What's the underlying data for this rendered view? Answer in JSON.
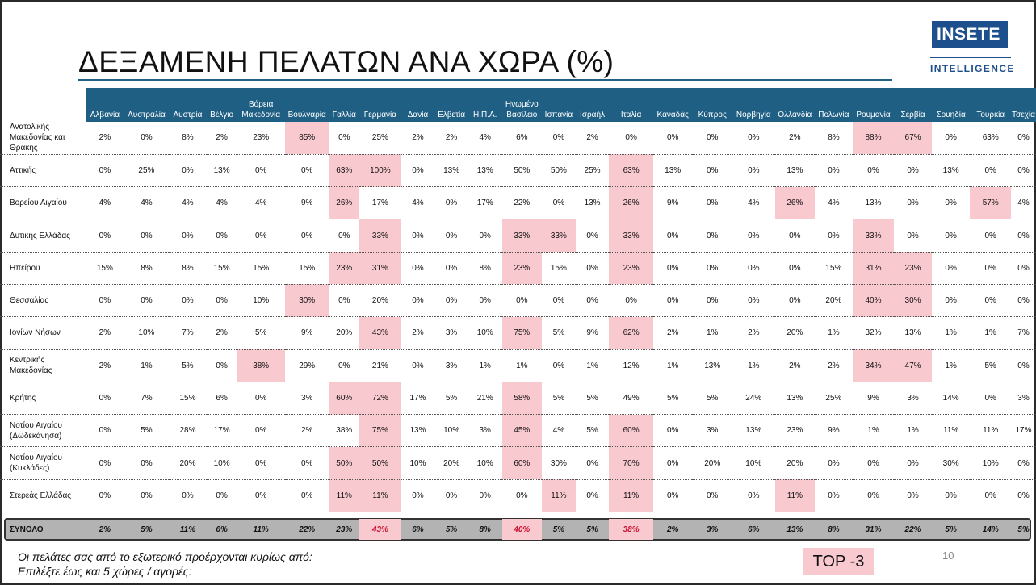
{
  "title": "ΔΕΞΑΜΕΝΗ ΠΕΛΑΤΩΝ ΑΝΑ ΧΩΡΑ (%)",
  "logo": {
    "brand_a": "IN",
    "brand_b": "SETE",
    "subtitle": "INTELLIGENCE"
  },
  "columns": [
    "Αλβανία",
    "Αυστραλία",
    "Αυστρία",
    "Βέλγιο",
    "Βόρεια Μακεδονία",
    "Βουλγαρία",
    "Γαλλία",
    "Γερμανία",
    "Δανία",
    "Ελβετία",
    "Η.Π.Α.",
    "Ηνωμένο Βασίλειο",
    "Ισπανία",
    "Ισραήλ",
    "Ιταλία",
    "Καναδάς",
    "Κύπρος",
    "Νορβηγία",
    "Ολλανδία",
    "Πολωνία",
    "Ρουμανία",
    "Σερβία",
    "Σουηδία",
    "Τουρκία",
    "Τσεχία"
  ],
  "rows": [
    {
      "region": "Ανατολικής Μακεδονίας και Θράκης",
      "values": [
        "2%",
        "0%",
        "8%",
        "2%",
        "23%",
        "85%",
        "0%",
        "25%",
        "2%",
        "2%",
        "4%",
        "6%",
        "0%",
        "2%",
        "0%",
        "0%",
        "0%",
        "0%",
        "2%",
        "8%",
        "88%",
        "67%",
        "0%",
        "63%",
        "0%"
      ],
      "highlight": [
        5,
        20,
        21
      ]
    },
    {
      "region": "Αττικής",
      "values": [
        "0%",
        "25%",
        "0%",
        "13%",
        "0%",
        "0%",
        "63%",
        "100%",
        "0%",
        "13%",
        "13%",
        "50%",
        "50%",
        "25%",
        "63%",
        "13%",
        "0%",
        "0%",
        "13%",
        "0%",
        "0%",
        "0%",
        "13%",
        "0%",
        "0%"
      ],
      "highlight": [
        6,
        7,
        14
      ]
    },
    {
      "region": "Βορείου Αιγαίου",
      "values": [
        "4%",
        "4%",
        "4%",
        "4%",
        "4%",
        "9%",
        "26%",
        "17%",
        "4%",
        "0%",
        "17%",
        "22%",
        "0%",
        "13%",
        "26%",
        "9%",
        "0%",
        "4%",
        "26%",
        "4%",
        "13%",
        "0%",
        "0%",
        "57%",
        "4%"
      ],
      "highlight": [
        6,
        14,
        18,
        23
      ]
    },
    {
      "region": "Δυτικής Ελλάδας",
      "values": [
        "0%",
        "0%",
        "0%",
        "0%",
        "0%",
        "0%",
        "0%",
        "33%",
        "0%",
        "0%",
        "0%",
        "33%",
        "33%",
        "0%",
        "33%",
        "0%",
        "0%",
        "0%",
        "0%",
        "0%",
        "33%",
        "0%",
        "0%",
        "0%",
        "0%"
      ],
      "highlight": [
        7,
        11,
        12,
        14,
        20
      ]
    },
    {
      "region": "Ηπείρου",
      "values": [
        "15%",
        "8%",
        "8%",
        "15%",
        "15%",
        "15%",
        "23%",
        "31%",
        "0%",
        "0%",
        "8%",
        "23%",
        "15%",
        "0%",
        "23%",
        "0%",
        "0%",
        "0%",
        "0%",
        "15%",
        "31%",
        "23%",
        "0%",
        "0%",
        "0%"
      ],
      "highlight": [
        6,
        7,
        11,
        14,
        20,
        21
      ]
    },
    {
      "region": "Θεσσαλίας",
      "values": [
        "0%",
        "0%",
        "0%",
        "0%",
        "10%",
        "30%",
        "0%",
        "20%",
        "0%",
        "0%",
        "0%",
        "0%",
        "0%",
        "0%",
        "0%",
        "0%",
        "0%",
        "0%",
        "0%",
        "20%",
        "40%",
        "30%",
        "0%",
        "0%",
        "0%"
      ],
      "highlight": [
        5,
        20,
        21
      ]
    },
    {
      "region": "Ιονίων Νήσων",
      "values": [
        "2%",
        "10%",
        "7%",
        "2%",
        "5%",
        "9%",
        "20%",
        "43%",
        "2%",
        "3%",
        "10%",
        "75%",
        "5%",
        "9%",
        "62%",
        "2%",
        "1%",
        "2%",
        "20%",
        "1%",
        "32%",
        "13%",
        "1%",
        "1%",
        "7%"
      ],
      "highlight": [
        7,
        11,
        14
      ]
    },
    {
      "region": "Κεντρικής Μακεδονίας",
      "values": [
        "2%",
        "1%",
        "5%",
        "0%",
        "38%",
        "29%",
        "0%",
        "21%",
        "0%",
        "3%",
        "1%",
        "1%",
        "0%",
        "1%",
        "12%",
        "1%",
        "13%",
        "1%",
        "2%",
        "2%",
        "34%",
        "47%",
        "1%",
        "5%",
        "0%"
      ],
      "highlight": [
        4,
        20,
        21
      ]
    },
    {
      "region": "Κρήτης",
      "values": [
        "0%",
        "7%",
        "15%",
        "6%",
        "0%",
        "3%",
        "60%",
        "72%",
        "17%",
        "5%",
        "21%",
        "58%",
        "5%",
        "5%",
        "49%",
        "5%",
        "5%",
        "24%",
        "13%",
        "25%",
        "9%",
        "3%",
        "14%",
        "0%",
        "3%"
      ],
      "highlight": [
        6,
        7,
        11
      ]
    },
    {
      "region": "Νοτίου Αιγαίου (Δωδεκάνησα)",
      "values": [
        "0%",
        "5%",
        "28%",
        "17%",
        "0%",
        "2%",
        "38%",
        "75%",
        "13%",
        "10%",
        "3%",
        "45%",
        "4%",
        "5%",
        "60%",
        "0%",
        "3%",
        "13%",
        "23%",
        "9%",
        "1%",
        "1%",
        "11%",
        "11%",
        "17%"
      ],
      "highlight": [
        7,
        11,
        14
      ]
    },
    {
      "region": "Νοτίου Αιγαίου (Κυκλάδες)",
      "values": [
        "0%",
        "0%",
        "20%",
        "10%",
        "0%",
        "0%",
        "50%",
        "50%",
        "10%",
        "20%",
        "10%",
        "60%",
        "30%",
        "0%",
        "70%",
        "0%",
        "20%",
        "10%",
        "20%",
        "0%",
        "0%",
        "0%",
        "30%",
        "10%",
        "0%"
      ],
      "highlight": [
        6,
        7,
        11,
        14
      ]
    },
    {
      "region": "Στερεάς Ελλάδας",
      "values": [
        "0%",
        "0%",
        "0%",
        "0%",
        "0%",
        "0%",
        "11%",
        "11%",
        "0%",
        "0%",
        "0%",
        "0%",
        "11%",
        "0%",
        "11%",
        "0%",
        "0%",
        "0%",
        "11%",
        "0%",
        "0%",
        "0%",
        "0%",
        "0%",
        "0%"
      ],
      "highlight": [
        6,
        7,
        12,
        14,
        18
      ]
    }
  ],
  "total": {
    "label": "ΣΥΝΟΛΟ",
    "values": [
      "2%",
      "5%",
      "11%",
      "6%",
      "11%",
      "22%",
      "23%",
      "43%",
      "6%",
      "5%",
      "8%",
      "40%",
      "5%",
      "5%",
      "38%",
      "2%",
      "3%",
      "6%",
      "13%",
      "8%",
      "31%",
      "22%",
      "5%",
      "14%",
      "5%"
    ],
    "highlight": [
      7,
      11,
      14
    ]
  },
  "note_line1": "Οι πελάτες σας από το εξωτερικό προέρχονται κυρίως από:",
  "note_line2": "Επιλέξτε έως και 5 χώρες / αγορές:",
  "top3_label": "TOP -3",
  "page_number": "10",
  "colors": {
    "header": "#1f5f84",
    "highlight": "#f9c9d0",
    "total_bg": "#b3b3b3",
    "logo": "#1d4f8c"
  }
}
